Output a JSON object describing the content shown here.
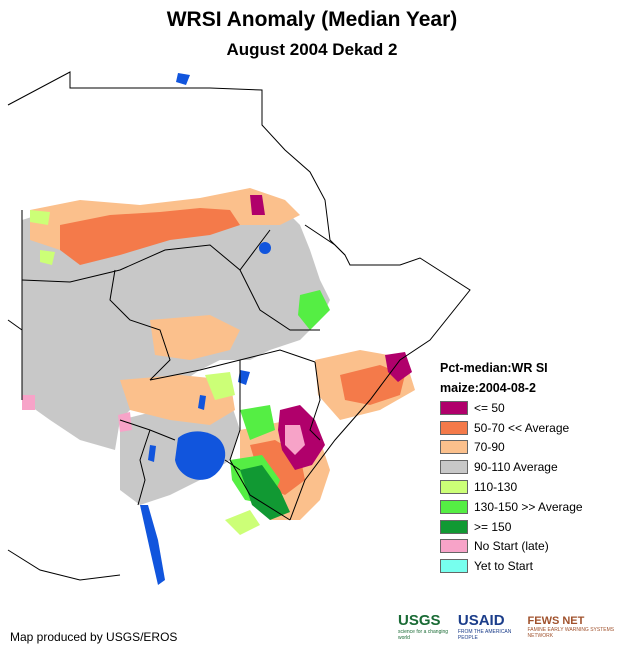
{
  "title": "WRSI Anomaly (Median Year)",
  "subtitle": "August 2004 Dekad 2",
  "legend": {
    "heading1": "Pct-median:WR SI",
    "heading2": "maize:2004-08-2",
    "items": [
      {
        "label": "<= 50",
        "color": "#b0006b"
      },
      {
        "label": "50-70 << Average",
        "color": "#f47a4a"
      },
      {
        "label": "70-90",
        "color": "#fbc08c"
      },
      {
        "label": "90-110 Average",
        "color": "#c8c8c8"
      },
      {
        "label": "110-130",
        "color": "#ccff77"
      },
      {
        "label": "130-150 >> Average",
        "color": "#55ee44"
      },
      {
        "label": ">= 150",
        "color": "#119933"
      },
      {
        "label": "No Start (late)",
        "color": "#f7a3c8"
      },
      {
        "label": "Yet to Start",
        "color": "#77ffee"
      }
    ]
  },
  "water_color": "#1155dd",
  "credit": "Map produced by USGS/EROS",
  "logos": {
    "usgs": "USGS",
    "usgs_tag": "science for a changing world",
    "usaid": "USAID",
    "usaid_tag": "FROM THE AMERICAN PEOPLE",
    "fews": "FEWS NET",
    "fews_tag": "FAMINE EARLY WARNING SYSTEMS NETWORK"
  }
}
